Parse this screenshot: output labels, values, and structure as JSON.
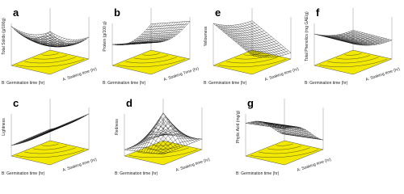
{
  "panels": [
    {
      "letter": "a",
      "z_label": "Total Solids (g/100g)",
      "y_label": "B: Germination time (hr)",
      "x_label": "A: Soaking time (hr)"
    },
    {
      "letter": "b",
      "z_label": "Protein (g/100 g)",
      "y_label": "B: Germination time (hr)",
      "x_label": "A: Soaking Time (hr)"
    },
    {
      "letter": "e",
      "z_label": "Yellowness",
      "y_label": "B: Germination time (hr)",
      "x_label": "A: Soaking time (hr)"
    },
    {
      "letter": "f",
      "z_label": "Total Phenolics (mg GAE/g)",
      "y_label": "B: Germination time (hr)",
      "x_label": "A: Soaking time (hr)"
    },
    {
      "letter": "c",
      "z_label": "Lightness",
      "y_label": "B: Germination time (hr)",
      "x_label": "A: Soaking time (hr)"
    },
    {
      "letter": "d",
      "z_label": "Redness",
      "y_label": "B: Germination time (hr)",
      "x_label": "A: Soaking time (hr)"
    },
    {
      "letter": "g",
      "z_label": "Phytic Acid (mg/g)",
      "y_label": "B: Germination time (hr)",
      "x_label": "A: Soaking time (hr)"
    }
  ]
}
